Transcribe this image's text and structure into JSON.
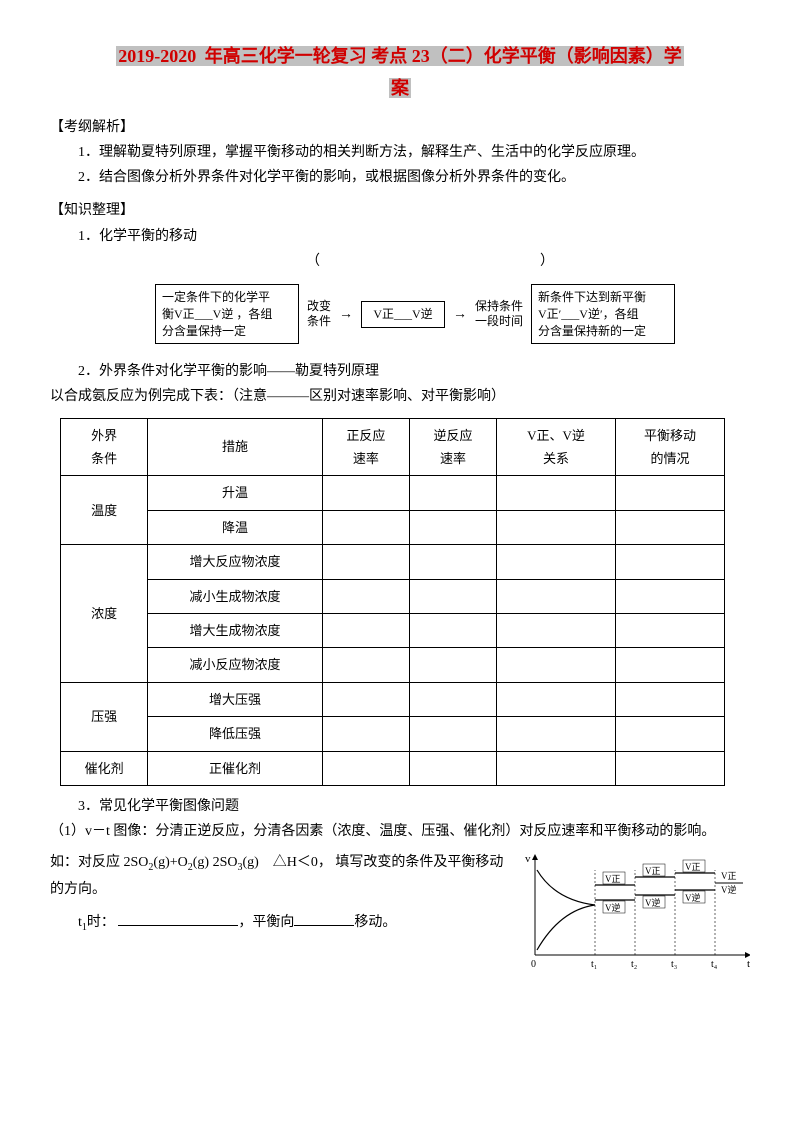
{
  "title_prefix": "2019-2020",
  "title_mid": " 年高三化学一轮复习 考点 23（二）化学平衡（影响因素）学",
  "title_suffix": "案",
  "section1": "【考纲解析】",
  "p1_1": "1．理解勒夏特列原理，掌握平衡移动的相关判断方法，解释生产、生活中的化学反应原理。",
  "p1_2": "2．结合图像分析外界条件对化学平衡的影响，或根据图像分析外界条件的变化。",
  "section2": "【知识整理】",
  "p2_1": "1．化学平衡的移动",
  "paren_left": "（",
  "paren_right": "）",
  "flow": {
    "box1_l1": "一定条件下的化学平",
    "box1_l2": "衡V正___V逆 ，各组",
    "box1_l3": "分含量保持一定",
    "arrow1_top": "改变",
    "arrow1_bot": "条件",
    "box2": "V正___V逆",
    "arrow2_top": "保持条件",
    "arrow2_bot": "一段时间",
    "box3_l1": "新条件下达到新平衡",
    "box3_l2": "V正′___V逆′，各组",
    "box3_l3": "分含量保持新的一定"
  },
  "p2_2": "2．外界条件对化学平衡的影响——勒夏特列原理",
  "p2_3": "以合成氨反应为例完成下表：（注意———区别对速率影响、对平衡影响）",
  "table": {
    "headers": [
      "外界\n条件",
      "措施",
      "正反应\n速率",
      "逆反应\n速率",
      "V正、V逆\n关系",
      "平衡移动\n的情况"
    ],
    "rows": [
      {
        "cat": "温度",
        "span": 2,
        "items": [
          "升温",
          "降温"
        ]
      },
      {
        "cat": "浓度",
        "span": 4,
        "items": [
          "增大反应物浓度",
          "减小生成物浓度",
          "增大生成物浓度",
          "减小反应物浓度"
        ]
      },
      {
        "cat": "压强",
        "span": 2,
        "items": [
          "增大压强",
          "降低压强"
        ]
      },
      {
        "cat": "催化剂",
        "span": 1,
        "items": [
          "正催化剂"
        ]
      }
    ]
  },
  "p2_4": "3．常见化学平衡图像问题",
  "p3_1": "（1）v－t 图像：分清正逆反应，分清各因素（浓度、温度、压强、催化剂）对反应速率和平衡移动的影响。",
  "p3_2a": "如：对反应 2SO",
  "p3_2b": "(g)+O",
  "p3_2c": "(g)  2SO",
  "p3_2d": "(g)　△H＜0，  填写改变的条件及平衡移动的方向。",
  "p3_3a": "t",
  "p3_3b": "时：",
  "p3_3c": "，平衡向",
  "p3_3d": "移动。",
  "chart": {
    "ylabel": "v",
    "xlabel": "t",
    "ticks": [
      "0",
      "t₁",
      "t₂",
      "t₃",
      "t₄"
    ],
    "labels": [
      "V正",
      "V逆"
    ],
    "colors": {
      "axis": "#000",
      "line": "#000",
      "text": "#000"
    }
  }
}
